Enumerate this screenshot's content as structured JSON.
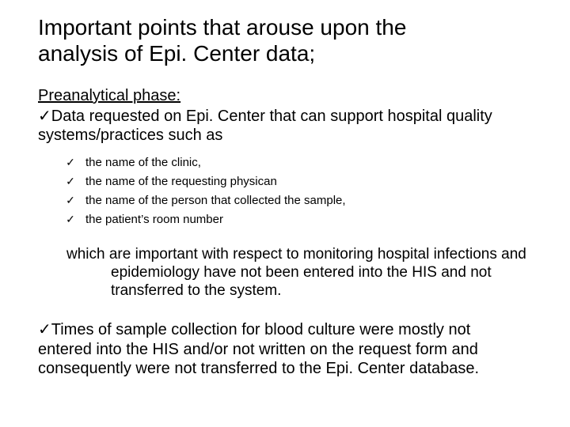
{
  "title_line1": "Important points that arouse upon the",
  "title_line2": "analysis of Epi. Center data;",
  "section_heading": "Preanalytical  phase:",
  "intro_check": "✓",
  "intro_line1": "Data requested on Epi. Center that can support hospital quality",
  "intro_line2": "systems/practices such as",
  "sub": [
    "the name of the clinic,",
    "the name of the requesting physican",
    "the name of the person that collected the sample,",
    "the patient’s room number"
  ],
  "para1_l1": "which are important with respect to monitoring hospital infections and",
  "para1_l2": "epidemiology have not been entered into the HIS and not",
  "para1_l3": "transferred to the system.",
  "p2_check": "✓",
  "p2_l1": "Times of sample collection for blood culture were mostly not",
  "p2_l2": "entered into the HIS and/or not written on the request form and",
  "p2_l3": "consequently were not transferred to the Epi. Center database.",
  "colors": {
    "text": "#000000",
    "background": "#ffffff"
  },
  "fonts": {
    "title_size_pt": 28,
    "body_size_pt": 20,
    "sub_size_pt": 15
  }
}
